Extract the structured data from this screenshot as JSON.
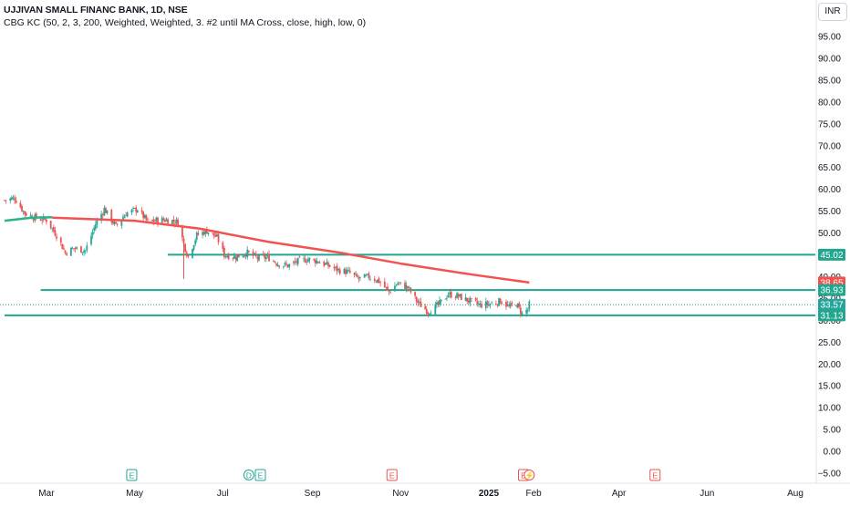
{
  "header": {
    "symbol_title": "UJJIVAN SMALL FINANC BANK, 1D, NSE",
    "indicator": "CBG KC (50, 2, 3, 200, Weighted, Weighted, 3. #2 until MA Cross, close, high, low, 0)",
    "currency": "INR"
  },
  "colors": {
    "up": "#26a69a",
    "down": "#ef5350",
    "ma_red": "#f05350",
    "ma_green": "#2ab38a",
    "level_line": "#22a68e",
    "earnings_up": "#26a69a",
    "earnings_down": "#ef5350"
  },
  "chart_data": {
    "type": "candlestick",
    "y_axis": {
      "min": -5,
      "max": 95,
      "ticks": [
        "95.00",
        "90.00",
        "85.00",
        "80.00",
        "75.00",
        "70.00",
        "65.00",
        "60.00",
        "55.00",
        "50.00",
        "45.00",
        "40.00",
        "35.00",
        "30.00",
        "25.00",
        "20.00",
        "15.00",
        "10.00",
        "5.00",
        "0.00",
        "−5.00"
      ],
      "tick_values": [
        95,
        90,
        85,
        80,
        75,
        70,
        65,
        60,
        55,
        50,
        45,
        40,
        35,
        30,
        25,
        20,
        15,
        10,
        5,
        0,
        -5
      ]
    },
    "x_axis": {
      "labels": [
        "Mar",
        "May",
        "Jul",
        "Sep",
        "Nov",
        "2025",
        "Feb",
        "Apr",
        "Jun",
        "Aug"
      ],
      "label_dates": [
        "2024-03-01",
        "2024-05-01",
        "2024-07-01",
        "2024-09-01",
        "2024-11-01",
        "2025-01-01",
        "2025-02-01",
        "2025-04-01",
        "2025-06-01",
        "2025-08-01"
      ],
      "range": [
        "2024-02-01",
        "2025-08-10"
      ]
    },
    "price_path": [
      [
        "2024-02-01",
        57.5
      ],
      [
        "2024-02-08",
        58.0
      ],
      [
        "2024-02-15",
        54.5
      ],
      [
        "2024-02-22",
        53.5
      ],
      [
        "2024-03-01",
        53.0
      ],
      [
        "2024-03-08",
        49.5
      ],
      [
        "2024-03-14",
        45.5
      ],
      [
        "2024-03-20",
        46.5
      ],
      [
        "2024-03-28",
        46.0
      ],
      [
        "2024-04-04",
        52.0
      ],
      [
        "2024-04-10",
        55.5
      ],
      [
        "2024-04-18",
        51.5
      ],
      [
        "2024-04-25",
        54.5
      ],
      [
        "2024-05-03",
        55.5
      ],
      [
        "2024-05-10",
        52.5
      ],
      [
        "2024-05-17",
        53.0
      ],
      [
        "2024-05-24",
        53.0
      ],
      [
        "2024-05-31",
        52.5
      ],
      [
        "2024-06-04",
        47.5
      ],
      [
        "2024-06-07",
        44.5
      ],
      [
        "2024-06-13",
        49.5
      ],
      [
        "2024-06-20",
        50.5
      ],
      [
        "2024-06-27",
        49.0
      ],
      [
        "2024-07-02",
        45.0
      ],
      [
        "2024-07-10",
        44.5
      ],
      [
        "2024-07-18",
        45.5
      ],
      [
        "2024-07-25",
        44.2
      ],
      [
        "2024-08-01",
        44.5
      ],
      [
        "2024-08-08",
        43.0
      ],
      [
        "2024-08-15",
        42.5
      ],
      [
        "2024-08-22",
        43.5
      ],
      [
        "2024-08-29",
        44.0
      ],
      [
        "2024-09-05",
        43.5
      ],
      [
        "2024-09-12",
        42.5
      ],
      [
        "2024-09-19",
        41.5
      ],
      [
        "2024-09-26",
        41.0
      ],
      [
        "2024-10-03",
        39.5
      ],
      [
        "2024-10-10",
        40.0
      ],
      [
        "2024-10-17",
        39.0
      ],
      [
        "2024-10-24",
        36.5
      ],
      [
        "2024-10-30",
        38.5
      ],
      [
        "2024-11-06",
        37.5
      ],
      [
        "2024-11-13",
        34.0
      ],
      [
        "2024-11-20",
        32.0
      ],
      [
        "2024-11-27",
        33.5
      ],
      [
        "2024-12-04",
        36.0
      ],
      [
        "2024-12-11",
        35.5
      ],
      [
        "2024-12-18",
        34.5
      ],
      [
        "2024-12-26",
        33.5
      ],
      [
        "2025-01-03",
        33.8
      ],
      [
        "2025-01-10",
        34.5
      ],
      [
        "2025-01-15",
        33.0
      ],
      [
        "2025-01-20",
        33.8
      ],
      [
        "2025-01-24",
        31.5
      ],
      [
        "2025-01-28",
        32.5
      ],
      [
        "2025-01-29",
        33.6
      ]
    ],
    "series": [
      {
        "name": "",
        "kind": "red_weighted_ma",
        "points": [
          [
            "2024-03-05",
            53.5
          ],
          [
            "2024-05-01",
            52.8
          ],
          [
            "2024-06-15",
            51.0
          ],
          [
            "2024-08-01",
            48.0
          ],
          [
            "2024-09-20",
            45.5
          ],
          [
            "2024-11-01",
            43.0
          ],
          [
            "2024-12-20",
            40.5
          ],
          [
            "2025-01-29",
            38.65
          ]
        ]
      },
      {
        "name": "",
        "kind": "green_channel_line",
        "points": [
          [
            "2024-02-01",
            52.8
          ],
          [
            "2024-02-20",
            53.5
          ],
          [
            "2024-03-05",
            53.6
          ]
        ]
      }
    ],
    "horizontal_levels": [
      {
        "value": 45.02,
        "from": "2024-05-24"
      },
      {
        "value": 36.93,
        "from": "2024-02-26"
      },
      {
        "value": 31.13,
        "from": "2024-02-01"
      }
    ],
    "dotted_last_price": 33.57,
    "price_tags": [
      {
        "value": 45.02,
        "label": "45.02",
        "bg": "#22a68e"
      },
      {
        "value": 38.65,
        "label": "38.65",
        "bg": "#f05350"
      },
      {
        "value": 36.93,
        "label": "36.93",
        "bg": "#22a68e"
      },
      {
        "value": 33.57,
        "label": "33.57",
        "bg": "#26a69a"
      },
      {
        "value": 31.13,
        "label": "31.13",
        "bg": "#22a68e"
      }
    ],
    "hidden_tag_label": "35.00",
    "event_markers": [
      {
        "date": "2024-04-29",
        "letter": "E",
        "kind": "up"
      },
      {
        "date": "2024-07-19",
        "letter": "D",
        "kind": "up"
      },
      {
        "date": "2024-07-27",
        "letter": "E",
        "kind": "up"
      },
      {
        "date": "2024-10-26",
        "letter": "E",
        "kind": "down"
      },
      {
        "date": "2025-01-25",
        "letter": "E",
        "kind": "down"
      },
      {
        "date": "2025-01-29",
        "letter": "⚡",
        "kind": "down"
      },
      {
        "date": "2025-04-26",
        "letter": "E",
        "kind": "down"
      }
    ]
  }
}
